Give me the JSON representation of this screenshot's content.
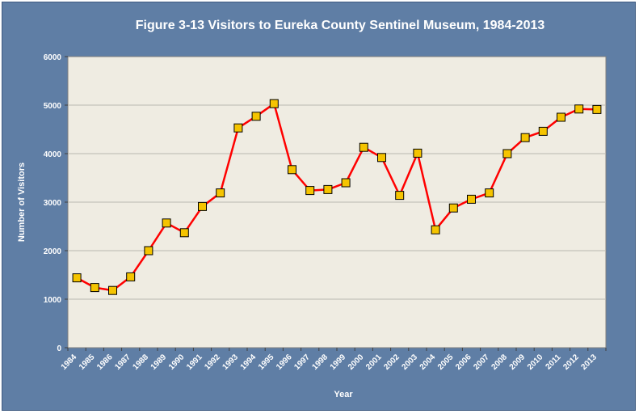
{
  "chart_data": {
    "type": "line",
    "title": "Figure 3-13 Visitors to Eureka County Sentinel Museum, 1984-2013",
    "xlabel": "Year",
    "ylabel": "Number of Visitors",
    "ylim": [
      0,
      6000
    ],
    "yticks": [
      0,
      1000,
      2000,
      3000,
      4000,
      5000,
      6000
    ],
    "grid": true,
    "legend": "none",
    "categories": [
      "1984",
      "1985",
      "1986",
      "1987",
      "1988",
      "1989",
      "1990",
      "1991",
      "1992",
      "1993",
      "1994",
      "1995",
      "1996",
      "1997",
      "1998",
      "1999",
      "2000",
      "2001",
      "2002",
      "2003",
      "2004",
      "2005",
      "2006",
      "2007",
      "2008",
      "2009",
      "2010",
      "2011",
      "2012",
      "2013"
    ],
    "series": [
      {
        "values": [
          1440,
          1240,
          1180,
          1460,
          2000,
          2570,
          2370,
          2910,
          3190,
          4530,
          4770,
          5030,
          3670,
          3240,
          3260,
          3400,
          4130,
          3920,
          3140,
          4010,
          2430,
          2880,
          3060,
          3190,
          4000,
          4330,
          4460,
          4750,
          4920,
          4910
        ],
        "color": "#ff0000",
        "marker_color": "#f5c400"
      }
    ],
    "colors": {
      "background": "#5f7ea5",
      "plot_area": "#efece2",
      "gridline": "#b9b7b0",
      "text": "#ffffff"
    }
  }
}
